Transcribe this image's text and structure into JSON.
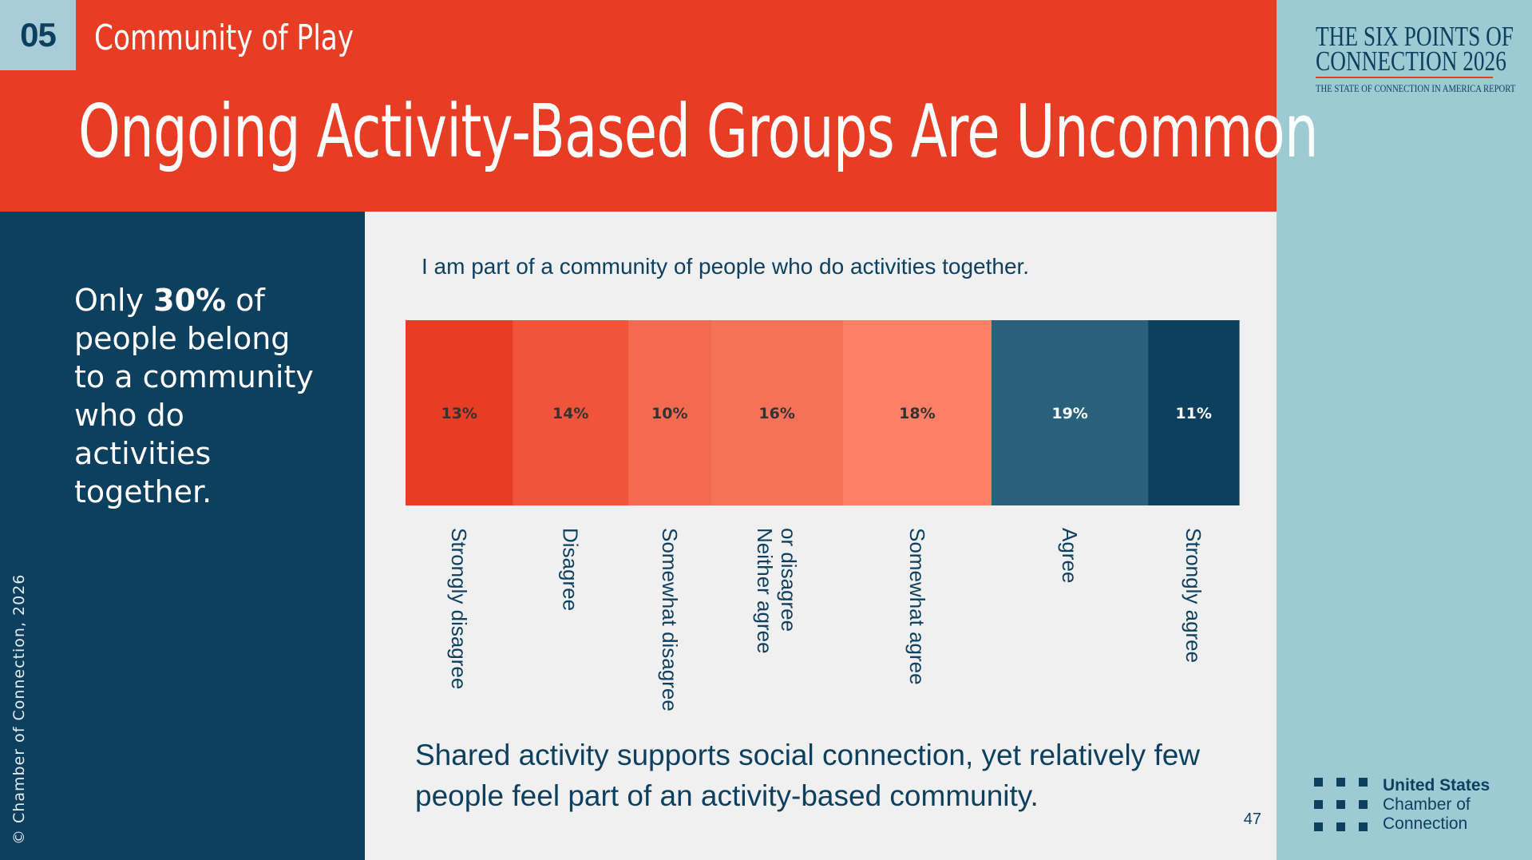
{
  "header": {
    "section_number": "05",
    "section_title": "Community of Play",
    "main_title": "Ongoing Activity-Based Groups Are Uncommon"
  },
  "sidebar": {
    "callout_prefix": "Only ",
    "callout_highlight": "30%",
    "callout_suffix": " of people belong to a community who do activities together.",
    "copyright": "© Chamber of Connection, 2026"
  },
  "report_logo": {
    "line1": "THE SIX POINTS OF",
    "line2": "CONNECTION 2026",
    "line3": "THE STATE OF CONNECTION IN AMERICA REPORT"
  },
  "org_logo": {
    "line1": "United States",
    "line2": "Chamber of",
    "line3": "Connection"
  },
  "colors": {
    "strongly_disagree": "#e83d25",
    "disagree": "#f0553b",
    "somewhat_disagree": "#f46a50",
    "neither": "#f57157",
    "somewhat_agree": "#fd8066",
    "agree": "#29617d",
    "strongly_agree": "#0d3f5e",
    "dark_text": "#333333",
    "light_text": "#ffffff"
  },
  "chart_data": {
    "type": "bar",
    "orientation": "horizontal-stacked",
    "title": "I am part of a community of people who do activities together.",
    "unit": "%",
    "categories": [
      "Strongly disagree",
      "Disagree",
      "Somewhat disagree",
      "Neither agree or disagree",
      "Somewhat agree",
      "Agree",
      "Strongly agree"
    ],
    "category_labels": [
      [
        "Strongly disagree"
      ],
      [
        "Disagree"
      ],
      [
        "Somewhat disagree"
      ],
      [
        "Neither agree",
        "or disagree"
      ],
      [
        "Somewhat agree"
      ],
      [
        "Agree"
      ],
      [
        "Strongly agree"
      ]
    ],
    "values": [
      13,
      14,
      10,
      16,
      18,
      19,
      11
    ],
    "value_labels": [
      "13%",
      "14%",
      "10%",
      "16%",
      "18%",
      "19%",
      "11%"
    ],
    "label_colors": [
      "#333333",
      "#333333",
      "#333333",
      "#333333",
      "#333333",
      "#ffffff",
      "#ffffff"
    ],
    "legend": "none",
    "grid": false
  },
  "footer": {
    "takeaway": "Shared activity supports social connection, yet relatively few people feel part of an activity-based community.",
    "page_number": "47"
  }
}
